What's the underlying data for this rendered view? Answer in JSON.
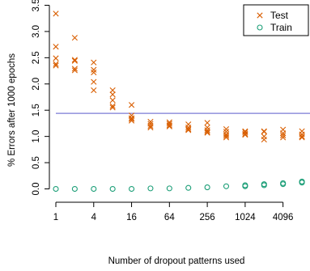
{
  "chart_data": {
    "type": "scatter",
    "xlabel": "Number of dropout patterns used",
    "ylabel": "% Errors after 1000 epochs",
    "x_scale": "log2",
    "x_ticks": [
      1,
      4,
      16,
      64,
      256,
      1024,
      4096
    ],
    "x_tick_labels": [
      "1",
      "4",
      "16",
      "64",
      "256",
      "1024",
      "4096"
    ],
    "xlim": [
      1,
      11000
    ],
    "y_ticks": [
      0.0,
      0.5,
      1.0,
      1.5,
      2.0,
      2.5,
      3.0,
      3.5
    ],
    "y_tick_labels": [
      "0.0",
      "0.5",
      "1.0",
      "1.5",
      "2.0",
      "2.5",
      "3.0",
      "3.5"
    ],
    "ylim": [
      -0.1,
      3.6
    ],
    "reference_line": {
      "y": 1.44,
      "color": "#7b7bd6"
    },
    "legend": {
      "position": "top-right"
    },
    "series": [
      {
        "name": "Test",
        "marker": "cross",
        "color": "#d95f02",
        "points": [
          [
            1,
            3.34
          ],
          [
            1,
            2.71
          ],
          [
            1,
            2.49
          ],
          [
            1,
            2.38
          ],
          [
            1,
            2.35
          ],
          [
            2,
            2.88
          ],
          [
            2,
            2.46
          ],
          [
            2,
            2.44
          ],
          [
            2,
            2.29
          ],
          [
            2,
            2.26
          ],
          [
            4,
            2.41
          ],
          [
            4,
            2.27
          ],
          [
            4,
            2.22
          ],
          [
            4,
            2.04
          ],
          [
            4,
            1.88
          ],
          [
            8,
            1.88
          ],
          [
            8,
            1.8
          ],
          [
            8,
            1.69
          ],
          [
            8,
            1.58
          ],
          [
            8,
            1.55
          ],
          [
            16,
            1.6
          ],
          [
            16,
            1.4
          ],
          [
            16,
            1.35
          ],
          [
            16,
            1.33
          ],
          [
            16,
            1.3
          ],
          [
            32,
            1.28
          ],
          [
            32,
            1.24
          ],
          [
            32,
            1.2
          ],
          [
            32,
            1.17
          ],
          [
            64,
            1.27
          ],
          [
            64,
            1.24
          ],
          [
            64,
            1.21
          ],
          [
            64,
            1.19
          ],
          [
            128,
            1.23
          ],
          [
            128,
            1.17
          ],
          [
            128,
            1.14
          ],
          [
            128,
            1.12
          ],
          [
            256,
            1.26
          ],
          [
            256,
            1.17
          ],
          [
            256,
            1.12
          ],
          [
            256,
            1.09
          ],
          [
            256,
            1.07
          ],
          [
            512,
            1.14
          ],
          [
            512,
            1.09
          ],
          [
            512,
            1.04
          ],
          [
            512,
            1.01
          ],
          [
            512,
            0.98
          ],
          [
            1024,
            1.1
          ],
          [
            1024,
            1.08
          ],
          [
            1024,
            1.05
          ],
          [
            1024,
            1.03
          ],
          [
            2048,
            1.1
          ],
          [
            2048,
            1.09
          ],
          [
            2048,
            1.0
          ],
          [
            2048,
            0.94
          ],
          [
            4096,
            1.13
          ],
          [
            4096,
            1.06
          ],
          [
            4096,
            1.02
          ],
          [
            4096,
            0.98
          ],
          [
            8192,
            1.1
          ],
          [
            8192,
            1.04
          ],
          [
            8192,
            1.0
          ],
          [
            8192,
            0.98
          ]
        ]
      },
      {
        "name": "Train",
        "marker": "circle",
        "color": "#1b9e77",
        "points": [
          [
            1,
            0.0
          ],
          [
            2,
            0.0
          ],
          [
            4,
            0.0
          ],
          [
            8,
            0.0
          ],
          [
            16,
            0.0
          ],
          [
            32,
            0.01
          ],
          [
            64,
            0.01
          ],
          [
            128,
            0.02
          ],
          [
            256,
            0.03
          ],
          [
            512,
            0.05
          ],
          [
            1024,
            0.07
          ],
          [
            1024,
            0.05
          ],
          [
            2048,
            0.09
          ],
          [
            2048,
            0.07
          ],
          [
            4096,
            0.11
          ],
          [
            4096,
            0.09
          ],
          [
            8192,
            0.14
          ],
          [
            8192,
            0.12
          ]
        ]
      }
    ]
  }
}
